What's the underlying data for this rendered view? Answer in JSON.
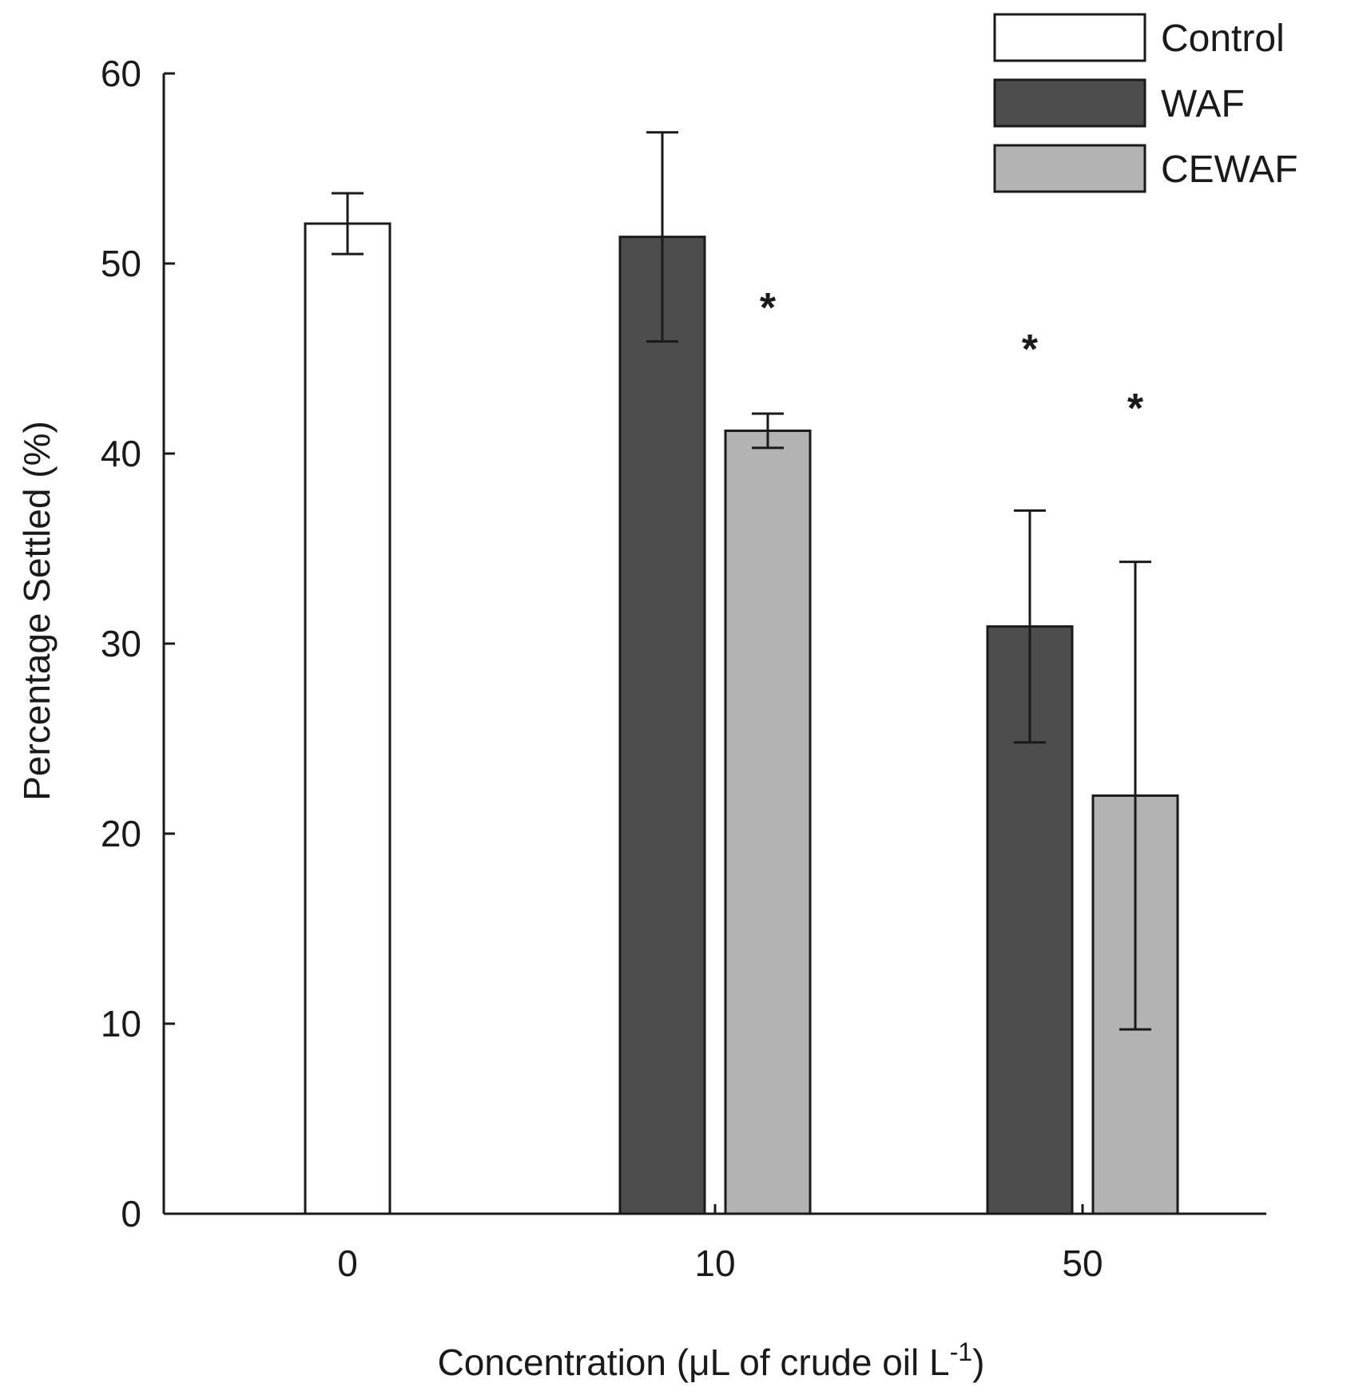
{
  "chart_data": {
    "type": "bar",
    "title": "",
    "xlabel": "Concentration (μL of crude oil L",
    "xlabel_superscript": "-1",
    "xlabel_suffix": ")",
    "ylabel": "Percentage Settled (%)",
    "ylim": [
      0,
      60
    ],
    "yticks": [
      0,
      10,
      20,
      30,
      40,
      50,
      60
    ],
    "categories": [
      "0",
      "10",
      "50"
    ],
    "grid": false,
    "legend_position": "top-right",
    "series": [
      {
        "name": "Control",
        "color": "#ffffff",
        "values": [
          52.1,
          null,
          null
        ],
        "errors": [
          1.6,
          null,
          null
        ],
        "significant": [
          false,
          false,
          false
        ]
      },
      {
        "name": "WAF",
        "color": "#4d4d4d",
        "values": [
          null,
          51.4,
          30.9
        ],
        "errors": [
          null,
          5.5,
          6.1
        ],
        "significant": [
          false,
          false,
          true
        ]
      },
      {
        "name": "CEWAF",
        "color": "#b3b3b3",
        "values": [
          null,
          41.2,
          22.0
        ],
        "errors": [
          null,
          0.9,
          12.3
        ],
        "significant": [
          false,
          true,
          true
        ]
      }
    ],
    "significance_marker": "*"
  }
}
